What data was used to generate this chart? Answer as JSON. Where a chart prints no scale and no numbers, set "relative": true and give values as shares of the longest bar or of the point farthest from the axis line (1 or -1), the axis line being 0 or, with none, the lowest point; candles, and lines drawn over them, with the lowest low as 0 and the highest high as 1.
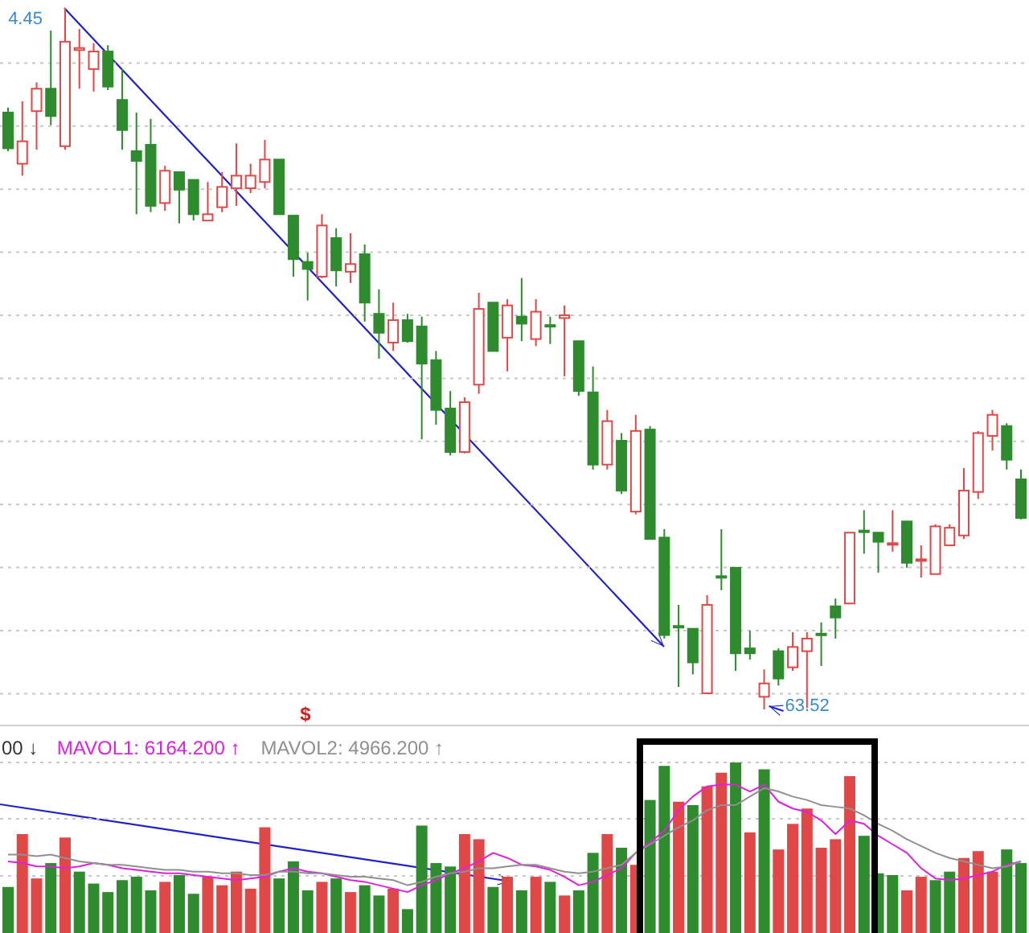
{
  "chart_data": [
    {
      "type": "candlestick",
      "relative": true,
      "grid": true,
      "categories": [
        null,
        null,
        null,
        null,
        null,
        null,
        null,
        null,
        null,
        null,
        null,
        null,
        null,
        null,
        null,
        null,
        null,
        null,
        null,
        null,
        null,
        null,
        null,
        null,
        null,
        null,
        null,
        null,
        null,
        null,
        null,
        null,
        null,
        null,
        null,
        null,
        null,
        null,
        null,
        null,
        null,
        null,
        null,
        null,
        null,
        null,
        null,
        null,
        null,
        null,
        null,
        null,
        null,
        null,
        null,
        null,
        null,
        null,
        null,
        null,
        null,
        null,
        null,
        null,
        null,
        null,
        null,
        null,
        null,
        null,
        null,
        null
      ],
      "ohlc": [
        [
          0.851,
          0.858,
          0.796,
          0.8
        ],
        [
          0.778,
          0.867,
          0.761,
          0.81
        ],
        [
          0.853,
          0.894,
          0.798,
          0.885
        ],
        [
          0.885,
          0.968,
          0.833,
          0.846
        ],
        [
          0.803,
          1,
          0.798,
          0.952
        ],
        [
          0.94,
          0.97,
          0.885,
          0.943
        ],
        [
          0.913,
          0.95,
          0.881,
          0.938
        ],
        [
          0.938,
          0.947,
          0.883,
          0.888
        ],
        [
          0.869,
          0.913,
          0.798,
          0.826
        ],
        [
          0.796,
          0.851,
          0.706,
          0.782
        ],
        [
          0.805,
          0.842,
          0.709,
          0.718
        ],
        [
          0.722,
          0.775,
          0.711,
          0.768
        ],
        [
          0.766,
          0.766,
          0.693,
          0.741
        ],
        [
          0.755,
          0.755,
          0.697,
          0.706
        ],
        [
          0.697,
          0.752,
          0.697,
          0.706
        ],
        [
          0.716,
          0.766,
          0.709,
          0.745
        ],
        [
          0.743,
          0.807,
          0.718,
          0.761
        ],
        [
          0.743,
          0.778,
          0.736,
          0.761
        ],
        [
          0.752,
          0.812,
          0.743,
          0.784
        ],
        [
          0.784,
          0.784,
          0.706,
          0.706
        ],
        [
          0.704,
          0.704,
          0.617,
          0.642
        ],
        [
          0.638,
          0.651,
          0.583,
          0.628
        ],
        [
          0.617,
          0.706,
          0.615,
          0.69
        ],
        [
          0.672,
          0.686,
          0.603,
          0.626
        ],
        [
          0.624,
          0.679,
          0.608,
          0.635
        ],
        [
          0.649,
          0.663,
          0.553,
          0.58
        ],
        [
          0.564,
          0.599,
          0.5,
          0.537
        ],
        [
          0.523,
          0.58,
          0.511,
          0.555
        ],
        [
          0.555,
          0.564,
          0.523,
          0.525
        ],
        [
          0.546,
          0.56,
          0.385,
          0.493
        ],
        [
          0.498,
          0.511,
          0.406,
          0.427
        ],
        [
          0.429,
          0.454,
          0.362,
          0.367
        ],
        [
          0.367,
          0.445,
          0.365,
          0.438
        ],
        [
          0.463,
          0.594,
          0.45,
          0.571
        ],
        [
          0.58,
          0.58,
          0.511,
          0.511
        ],
        [
          0.53,
          0.585,
          0.482,
          0.576
        ],
        [
          0.56,
          0.615,
          0.525,
          0.55
        ],
        [
          0.528,
          0.585,
          0.518,
          0.567
        ],
        [
          0.548,
          0.56,
          0.521,
          0.546
        ],
        [
          0.558,
          0.576,
          0.475,
          0.562
        ],
        [
          0.525,
          0.525,
          0.447,
          0.454
        ],
        [
          0.452,
          0.489,
          0.342,
          0.349
        ],
        [
          0.349,
          0.427,
          0.342,
          0.411
        ],
        [
          0.383,
          0.394,
          0.307,
          0.312
        ],
        [
          0.282,
          0.42,
          0.278,
          0.397
        ],
        [
          0.399,
          0.404,
          0.243,
          0.243
        ],
        [
          0.245,
          0.257,
          0.101,
          0.106
        ],
        [
          0.119,
          0.149,
          0.032,
          0.117
        ],
        [
          0.115,
          0.115,
          0.05,
          0.067
        ],
        [
          0.023,
          0.163,
          0.023,
          0.149
        ],
        [
          0.19,
          0.257,
          0.17,
          0.188
        ],
        [
          0.202,
          0.202,
          0.055,
          0.08
        ],
        [
          0.087,
          0.112,
          0.071,
          0.08
        ],
        [
          0.018,
          0.057,
          0,
          0.037
        ],
        [
          0.083,
          0.087,
          0.034,
          0.044
        ],
        [
          0.06,
          0.11,
          0.055,
          0.089
        ],
        [
          0.083,
          0.11,
          0.002,
          0.101
        ],
        [
          0.108,
          0.124,
          0.062,
          0.107
        ],
        [
          0.147,
          0.158,
          0.101,
          0.131
        ],
        [
          0.151,
          0.252,
          0.151,
          0.252
        ],
        [
          0.255,
          0.284,
          0.222,
          0.254
        ],
        [
          0.252,
          0.252,
          0.195,
          0.239
        ],
        [
          0.235,
          0.284,
          0.225,
          0.237
        ],
        [
          0.268,
          0.268,
          0.202,
          0.209
        ],
        [
          0.212,
          0.234,
          0.188,
          0.214
        ],
        [
          0.193,
          0.264,
          0.193,
          0.261
        ],
        [
          0.234,
          0.264,
          0.234,
          0.259
        ],
        [
          0.248,
          0.344,
          0.243,
          0.312
        ],
        [
          0.31,
          0.397,
          0.3,
          0.394
        ],
        [
          0.39,
          0.427,
          0.369,
          0.42
        ],
        [
          0.404,
          0.408,
          0.342,
          0.356
        ],
        [
          0.328,
          0.342,
          0.271,
          0.273
        ]
      ],
      "annotations": [
        "4.45",
        "63.52",
        "$"
      ]
    },
    {
      "type": "bar",
      "relative": true,
      "ref_lines": [
        {
          "axis": "y",
          "value": 0.335,
          "color": "#c8c8c8",
          "line_style": "dotted"
        },
        {
          "axis": "y",
          "value": 0.67,
          "color": "#c8c8c8",
          "line_style": "dotted"
        },
        {
          "axis": "y",
          "value": 1.0,
          "color": "#c8c8c8",
          "line_style": "dotted"
        }
      ],
      "categories": [
        null,
        null,
        null,
        null,
        null,
        null,
        null,
        null,
        null,
        null,
        null,
        null,
        null,
        null,
        null,
        null,
        null,
        null,
        null,
        null,
        null,
        null,
        null,
        null,
        null,
        null,
        null,
        null,
        null,
        null,
        null,
        null,
        null,
        null,
        null,
        null,
        null,
        null,
        null,
        null,
        null,
        null,
        null,
        null,
        null,
        null,
        null,
        null,
        null,
        null,
        null,
        null,
        null,
        null,
        null,
        null,
        null,
        null,
        null,
        null,
        null,
        null,
        null,
        null,
        null,
        null,
        null,
        null,
        null,
        null,
        null,
        null
      ],
      "series": [
        {
          "type": "bar",
          "values": [
            0.27,
            0.58,
            0.32,
            0.41,
            0.56,
            0.36,
            0.29,
            0.24,
            0.31,
            0.33,
            0.25,
            0.3,
            0.34,
            0.23,
            0.33,
            0.28,
            0.36,
            0.26,
            0.62,
            0.32,
            0.42,
            0.25,
            0.3,
            0.32,
            0.24,
            0.28,
            0.22,
            0.26,
            0.14,
            0.63,
            0.41,
            0.39,
            0.58,
            0.55,
            0.27,
            0.33,
            0.25,
            0.33,
            0.3,
            0.22,
            0.25,
            0.47,
            0.58,
            0.5,
            0.4,
            0.78,
            0.98,
            0.77,
            0.75,
            0.86,
            0.94,
            1,
            0.59,
            0.96,
            0.49,
            0.64,
            0.73,
            0.5,
            0.55,
            0.92,
            0.57,
            0.35,
            0.34,
            0.25,
            0.33,
            0.31,
            0.36,
            0.44,
            0.48,
            0.36,
            0.49,
            0.41
          ],
          "colors": [
            "#2e8b2e",
            "#e04848",
            "#e04848",
            "#2e8b2e",
            "#e04848",
            "#2e8b2e",
            "#2e8b2e",
            "#2e8b2e",
            "#2e8b2e",
            "#2e8b2e",
            "#2e8b2e",
            "#e04848",
            "#2e8b2e",
            "#2e8b2e",
            "#e04848",
            "#e04848",
            "#e04848",
            "#e04848",
            "#e04848",
            "#2e8b2e",
            "#2e8b2e",
            "#2e8b2e",
            "#e04848",
            "#2e8b2e",
            "#e04848",
            "#2e8b2e",
            "#2e8b2e",
            "#e04848",
            "#2e8b2e",
            "#2e8b2e",
            "#2e8b2e",
            "#2e8b2e",
            "#e04848",
            "#e04848",
            "#2e8b2e",
            "#e04848",
            "#2e8b2e",
            "#e04848",
            "#2e8b2e",
            "#e04848",
            "#2e8b2e",
            "#2e8b2e",
            "#e04848",
            "#2e8b2e",
            "#e04848",
            "#2e8b2e",
            "#2e8b2e",
            "#e04848",
            "#2e8b2e",
            "#e04848",
            "#e04848",
            "#2e8b2e",
            "#e04848",
            "#2e8b2e",
            "#e04848",
            "#e04848",
            "#e04848",
            "#e04848",
            "#e04848",
            "#e04848",
            "#2e8b2e",
            "#2e8b2e",
            "#2e8b2e",
            "#e04848",
            "#e04848",
            "#2e8b2e",
            "#2e8b2e",
            "#e04848",
            "#e04848",
            "#e04848",
            "#2e8b2e",
            "#2e8b2e"
          ]
        },
        {
          "type": "line",
          "color": "#e020e0",
          "values": [
            0.42,
            0.41,
            0.39,
            0.39,
            0.38,
            0.39,
            0.41,
            0.4,
            0.38,
            0.37,
            0.36,
            0.35,
            0.35,
            0.34,
            0.33,
            0.32,
            0.31,
            0.32,
            0.33,
            0.36,
            0.38,
            0.36,
            0.35,
            0.33,
            0.31,
            0.3,
            0.28,
            0.26,
            0.24,
            0.28,
            0.31,
            0.35,
            0.38,
            0.42,
            0.47,
            0.44,
            0.4,
            0.39,
            0.37,
            0.33,
            0.28,
            0.3,
            0.34,
            0.38,
            0.47,
            0.53,
            0.6,
            0.72,
            0.8,
            0.86,
            0.87,
            0.87,
            0.83,
            0.87,
            0.77,
            0.73,
            0.71,
            0.66,
            0.58,
            0.66,
            0.64,
            0.57,
            0.52,
            0.47,
            0.38,
            0.32,
            0.31,
            0.32,
            0.34,
            0.36,
            0.4,
            0.42
          ]
        },
        {
          "type": "line",
          "color": "#909090",
          "values": [
            0.46,
            0.46,
            0.45,
            0.46,
            0.44,
            0.42,
            0.41,
            0.4,
            0.4,
            0.39,
            0.38,
            0.37,
            0.37,
            0.36,
            0.36,
            0.35,
            0.35,
            0.34,
            0.34,
            0.36,
            0.36,
            0.35,
            0.35,
            0.34,
            0.33,
            0.33,
            0.32,
            0.31,
            0.28,
            0.3,
            0.33,
            0.35,
            0.36,
            0.38,
            0.38,
            0.39,
            0.4,
            0.4,
            0.38,
            0.36,
            0.35,
            0.36,
            0.38,
            0.4,
            0.47,
            0.52,
            0.57,
            0.62,
            0.66,
            0.72,
            0.75,
            0.75,
            0.8,
            0.85,
            0.83,
            0.8,
            0.78,
            0.75,
            0.74,
            0.73,
            0.69,
            0.64,
            0.6,
            0.55,
            0.51,
            0.47,
            0.44,
            0.42,
            0.4,
            0.38,
            0.39,
            0.42
          ]
        }
      ],
      "annotations": [
        "00 ↓",
        "MAVOL1: 6164.200 ↑",
        "MAVOL2: 4966.200 ↑"
      ]
    }
  ]
}
